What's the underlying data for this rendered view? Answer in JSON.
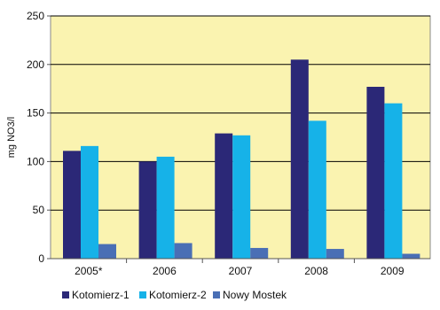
{
  "chart_data": {
    "type": "bar",
    "title": "",
    "xlabel": "",
    "ylabel": "mg NO3/l",
    "categories": [
      "2005*",
      "2006",
      "2007",
      "2008",
      "2009"
    ],
    "ylim": [
      0,
      250
    ],
    "yticks": [
      0,
      50,
      100,
      150,
      200,
      250
    ],
    "grid": true,
    "legend": "bottom",
    "background": "#faf3b0",
    "series": [
      {
        "name": "Kotomierz-1",
        "color": "#2b2877",
        "values": [
          111,
          100,
          129,
          205,
          177
        ]
      },
      {
        "name": "Kotomierz-2",
        "color": "#16b2e8",
        "values": [
          116,
          105,
          127,
          142,
          160
        ]
      },
      {
        "name": "Nowy Mostek",
        "color": "#4a6fb5",
        "values": [
          15,
          16,
          11,
          10,
          5
        ]
      }
    ]
  }
}
